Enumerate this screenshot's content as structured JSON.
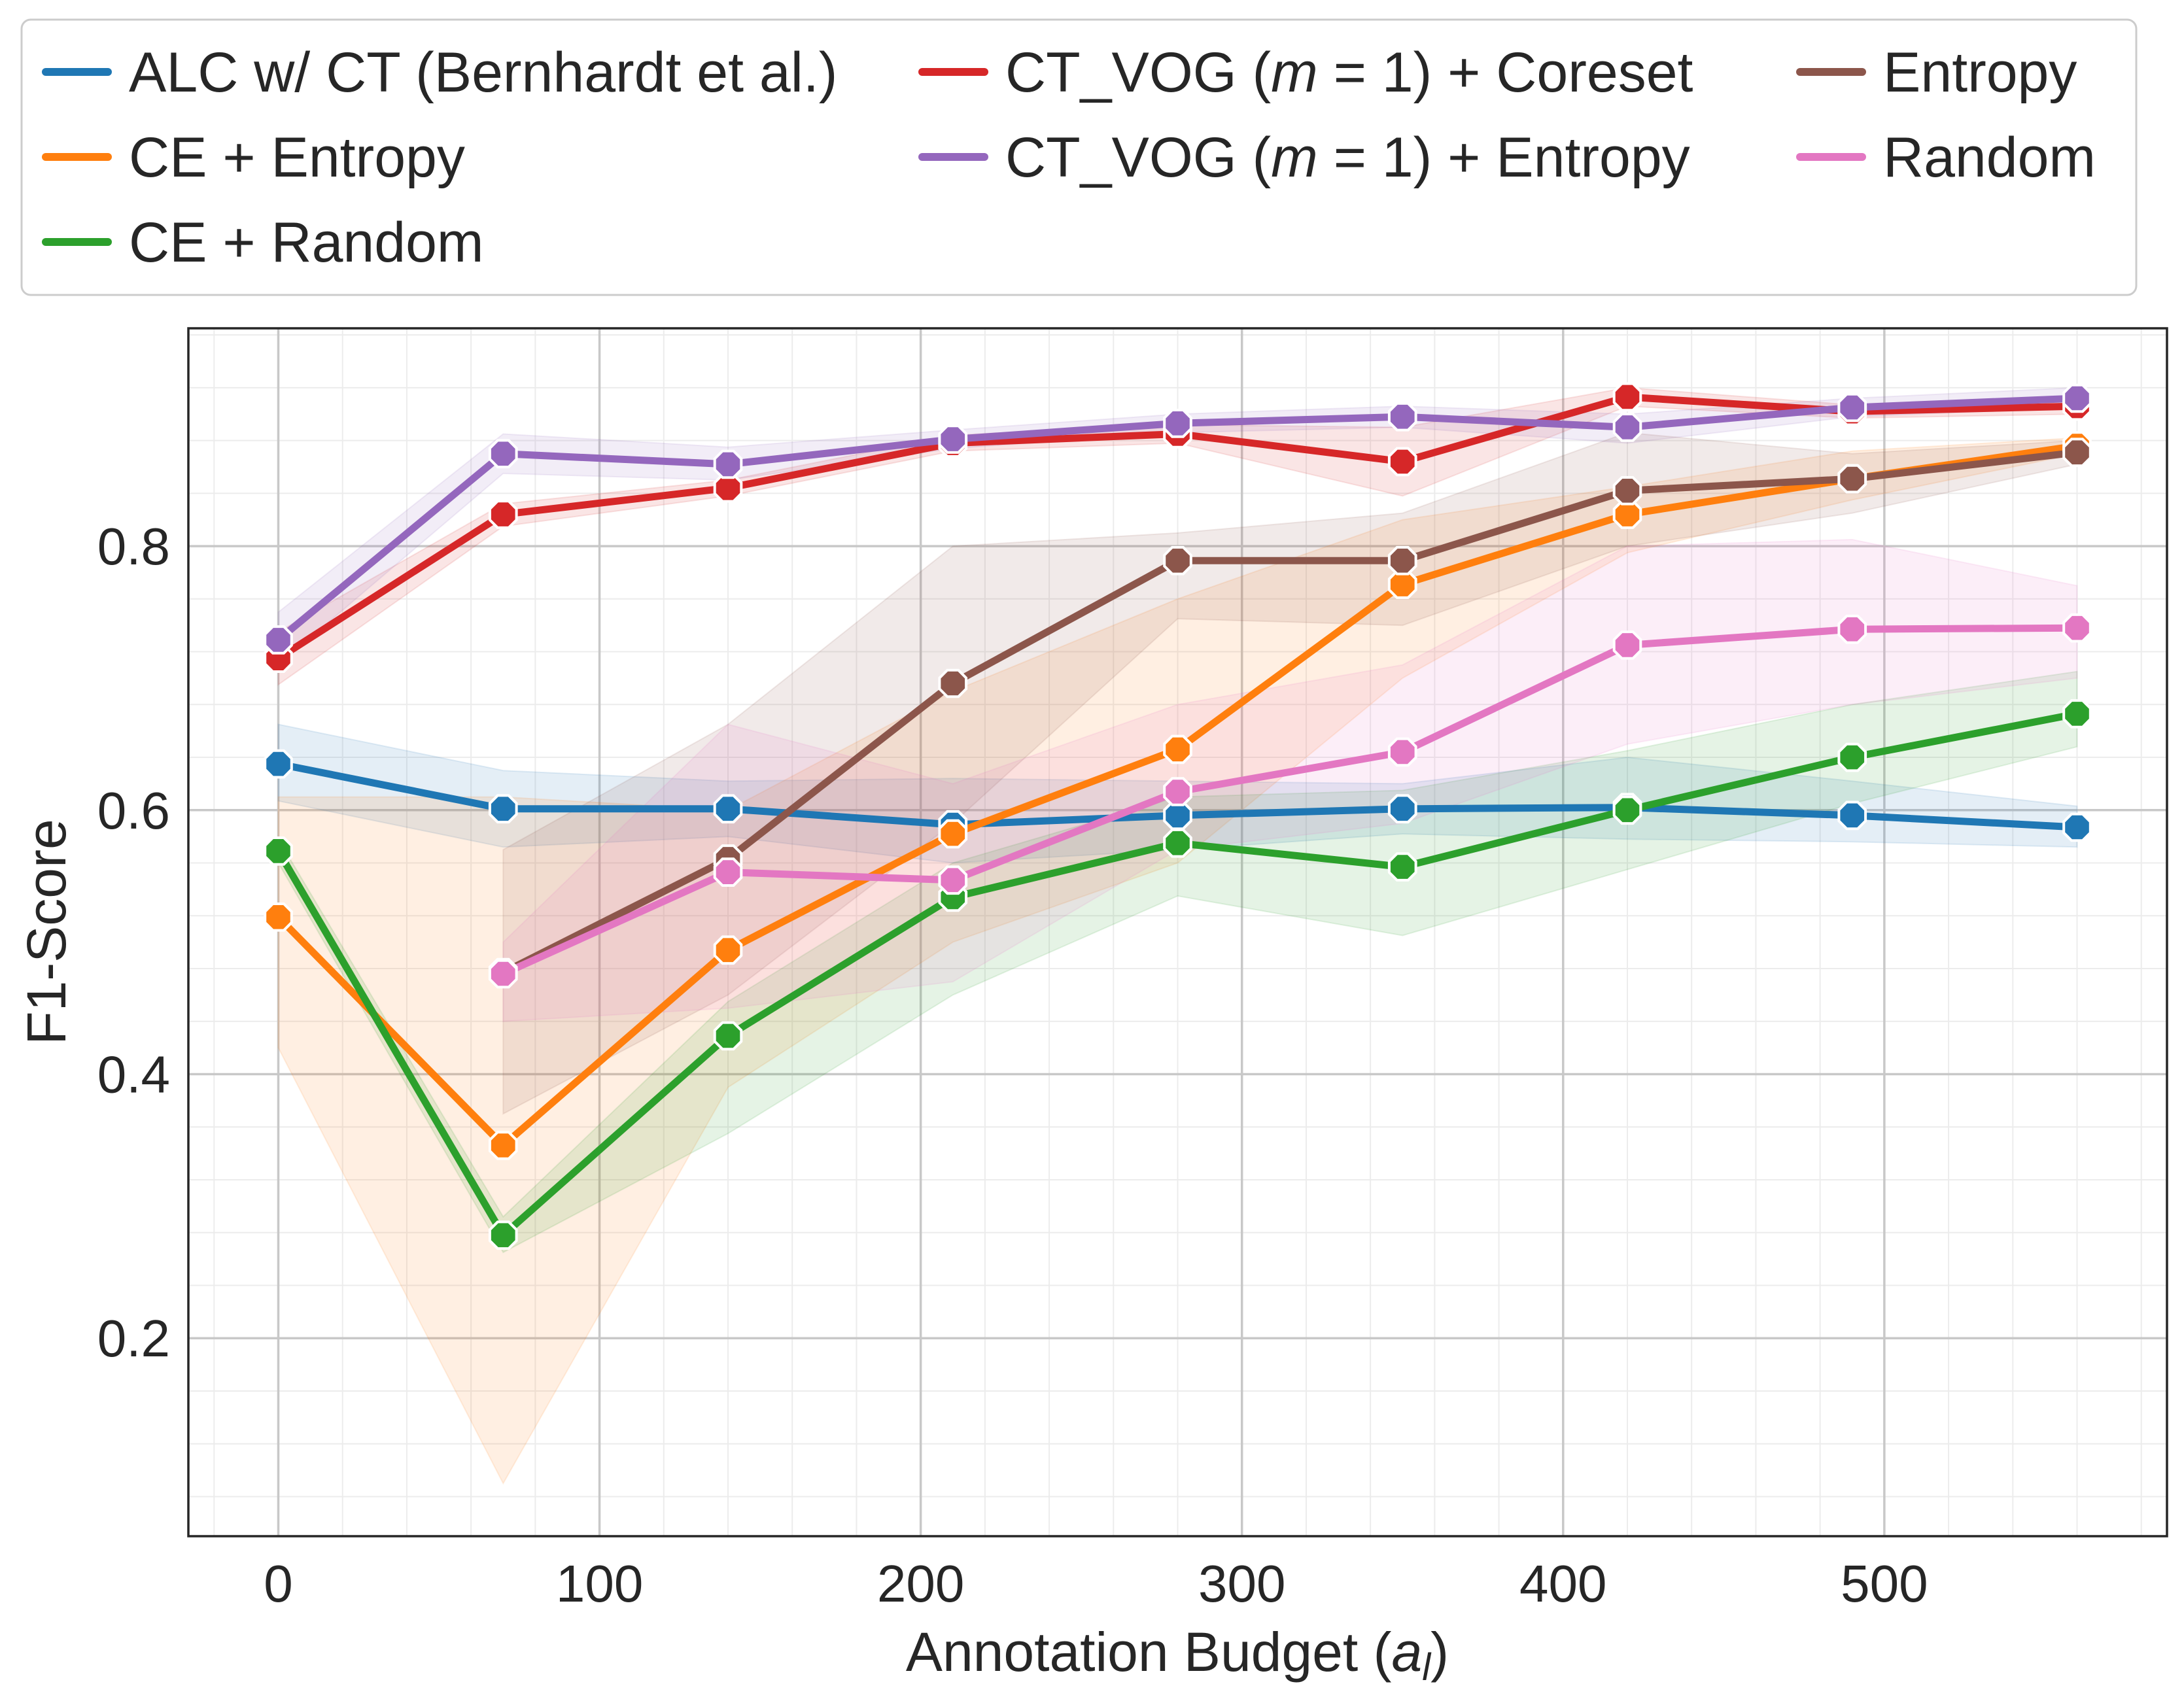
{
  "chart_data": {
    "type": "line",
    "title": "",
    "xlabel_main": "Annotation Budget (",
    "xlabel_var": "a",
    "xlabel_sub": "l",
    "xlabel_end": ")",
    "ylabel": "F1-Score",
    "xlim": [
      -28,
      588
    ],
    "ylim": [
      0.05,
      0.965
    ],
    "xticks": [
      0,
      100,
      200,
      300,
      400,
      500
    ],
    "xtick_labels": [
      "0",
      "100",
      "200",
      "300",
      "400",
      "500"
    ],
    "yticks": [
      0.2,
      0.4,
      0.6,
      0.8
    ],
    "ytick_labels": [
      "0.2",
      "0.4",
      "0.6",
      "0.8"
    ],
    "grid": true,
    "legend_position": "top",
    "series": [
      {
        "name": "ALC w/ CT (Bernhardt et al.)",
        "color": "#1f77b4",
        "x": [
          0,
          70,
          140,
          210,
          280,
          350,
          420,
          490,
          560
        ],
        "values": [
          0.635,
          0.601,
          0.601,
          0.589,
          0.596,
          0.601,
          0.602,
          0.596,
          0.587
        ],
        "lower": [
          0.607,
          0.572,
          0.58,
          0.56,
          0.57,
          0.582,
          0.578,
          0.576,
          0.572
        ],
        "upper": [
          0.665,
          0.63,
          0.622,
          0.624,
          0.622,
          0.62,
          0.64,
          0.622,
          0.603
        ]
      },
      {
        "name": "CE + Entropy",
        "color": "#ff7f0e",
        "x": [
          0,
          70,
          140,
          210,
          280,
          350,
          420,
          490,
          560
        ],
        "values": [
          0.519,
          0.346,
          0.494,
          0.582,
          0.646,
          0.771,
          0.824,
          0.851,
          0.876
        ],
        "lower": [
          0.42,
          0.09,
          0.39,
          0.5,
          0.56,
          0.7,
          0.795,
          0.835,
          0.87
        ],
        "upper": [
          0.61,
          0.61,
          0.6,
          0.69,
          0.76,
          0.82,
          0.845,
          0.872,
          0.882
        ]
      },
      {
        "name": "CE + Random",
        "color": "#2ca02c",
        "x": [
          0,
          70,
          140,
          210,
          280,
          350,
          420,
          490,
          560
        ],
        "values": [
          0.569,
          0.278,
          0.429,
          0.534,
          0.575,
          0.557,
          0.6,
          0.64,
          0.673
        ],
        "lower": [
          0.56,
          0.265,
          0.355,
          0.46,
          0.535,
          0.505,
          0.555,
          0.605,
          0.648
        ],
        "upper": [
          0.578,
          0.292,
          0.455,
          0.56,
          0.61,
          0.615,
          0.645,
          0.68,
          0.705
        ]
      },
      {
        "name": "CT_VOG (m = 1) + Coreset",
        "color": "#d62728",
        "x": [
          0,
          70,
          140,
          210,
          280,
          350,
          420,
          490,
          560
        ],
        "values": [
          0.715,
          0.824,
          0.844,
          0.878,
          0.885,
          0.864,
          0.913,
          0.902,
          0.906
        ],
        "lower": [
          0.695,
          0.815,
          0.838,
          0.872,
          0.878,
          0.838,
          0.906,
          0.897,
          0.9
        ],
        "upper": [
          0.735,
          0.832,
          0.85,
          0.884,
          0.892,
          0.89,
          0.92,
          0.907,
          0.912
        ]
      },
      {
        "name": "CT_VOG (m = 1) + Entropy",
        "color": "#9467bd",
        "x": [
          0,
          70,
          140,
          210,
          280,
          350,
          420,
          490,
          560
        ],
        "values": [
          0.729,
          0.87,
          0.862,
          0.881,
          0.893,
          0.898,
          0.89,
          0.905,
          0.912
        ],
        "lower": [
          0.71,
          0.855,
          0.85,
          0.874,
          0.886,
          0.89,
          0.878,
          0.898,
          0.905
        ],
        "upper": [
          0.75,
          0.885,
          0.875,
          0.888,
          0.9,
          0.906,
          0.9,
          0.912,
          0.92
        ]
      },
      {
        "name": "Entropy",
        "color": "#8c564b",
        "x": [
          70,
          140,
          210,
          280,
          350,
          420,
          490,
          560
        ],
        "values": [
          0.477,
          0.563,
          0.696,
          0.789,
          0.789,
          0.842,
          0.851,
          0.871
        ],
        "lower": [
          0.37,
          0.46,
          0.59,
          0.745,
          0.74,
          0.8,
          0.825,
          0.862
        ],
        "upper": [
          0.57,
          0.665,
          0.8,
          0.81,
          0.825,
          0.886,
          0.87,
          0.88
        ]
      },
      {
        "name": "Random",
        "color": "#e377c2",
        "x": [
          70,
          140,
          210,
          280,
          350,
          420,
          490,
          560
        ],
        "values": [
          0.476,
          0.553,
          0.547,
          0.614,
          0.644,
          0.725,
          0.737,
          0.738
        ],
        "lower": [
          0.44,
          0.45,
          0.47,
          0.57,
          0.59,
          0.65,
          0.68,
          0.7
        ],
        "upper": [
          0.5,
          0.665,
          0.62,
          0.68,
          0.71,
          0.8,
          0.805,
          0.77
        ]
      }
    ]
  },
  "legend": {
    "col1": [
      "ALC w/ CT (Bernhardt et al.)",
      "CE + Entropy",
      "CE + Random"
    ],
    "col2": [
      {
        "prefix": "CT_VOG (",
        "var": "m",
        "eq": " = 1",
        "suffix": ") + Coreset"
      },
      {
        "prefix": "CT_VOG (",
        "var": "m",
        "eq": " = 1",
        "suffix": ") + Entropy"
      }
    ],
    "col3": [
      "Entropy",
      "Random"
    ]
  }
}
